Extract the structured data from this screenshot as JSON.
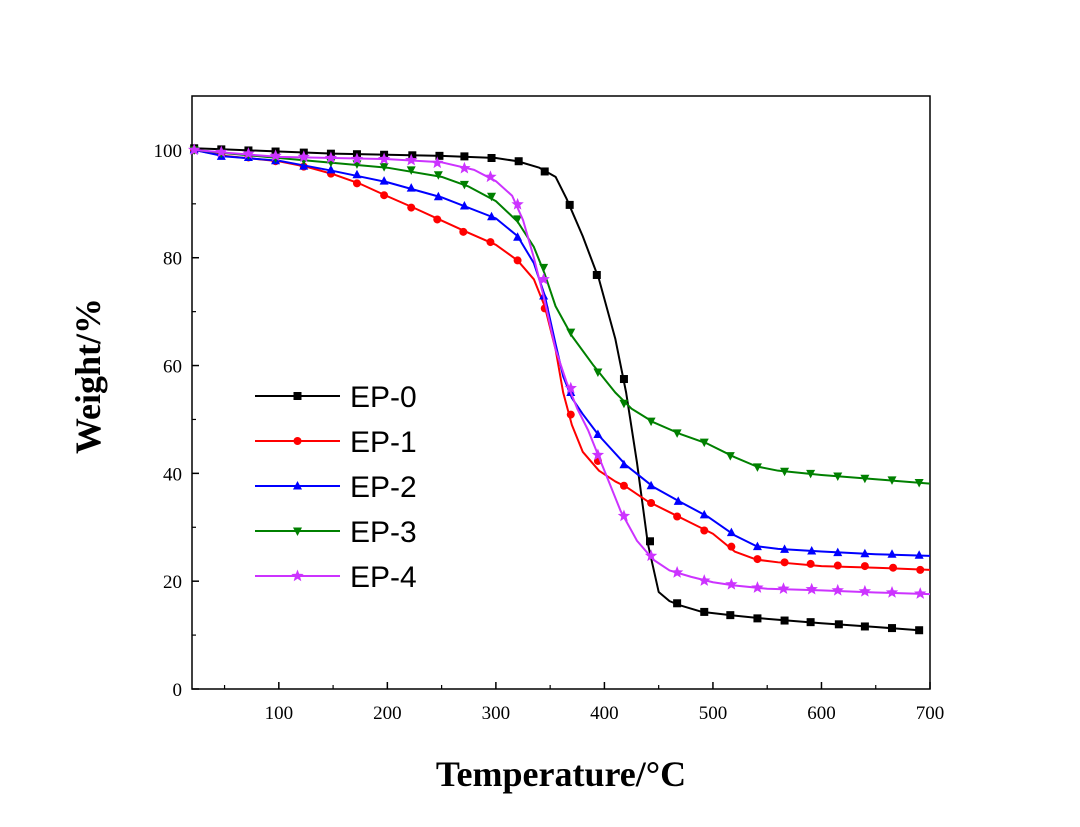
{
  "chart_data": {
    "type": "line",
    "title": "",
    "xlabel": "Temperature/°C",
    "ylabel": "Weight/%",
    "xlim": [
      20,
      700
    ],
    "ylim": [
      0,
      110
    ],
    "xticks": [
      100,
      200,
      300,
      400,
      500,
      600,
      700
    ],
    "yticks": [
      0,
      20,
      40,
      60,
      80,
      100
    ],
    "x_tick_labels": [
      "100",
      "200",
      "300",
      "400",
      "500",
      "600",
      "700"
    ],
    "y_tick_labels": [
      "0",
      "20",
      "40",
      "60",
      "80",
      "100"
    ],
    "grid": false,
    "legend_position": "center-left",
    "series": [
      {
        "name": "EP-0",
        "color": "#000000",
        "marker": "square",
        "points": [
          [
            22,
            100.3
          ],
          [
            50,
            100.1
          ],
          [
            100,
            99.7
          ],
          [
            150,
            99.3
          ],
          [
            200,
            99.1
          ],
          [
            250,
            98.9
          ],
          [
            300,
            98.5
          ],
          [
            320,
            97.9
          ],
          [
            340,
            96.7
          ],
          [
            355,
            95
          ],
          [
            365,
            91
          ],
          [
            380,
            84
          ],
          [
            395,
            76
          ],
          [
            410,
            65
          ],
          [
            420,
            55
          ],
          [
            430,
            42
          ],
          [
            440,
            27
          ],
          [
            450,
            18
          ],
          [
            460,
            16.3
          ],
          [
            470,
            15.5
          ],
          [
            490,
            14.3
          ],
          [
            520,
            13.6
          ],
          [
            550,
            13
          ],
          [
            600,
            12.2
          ],
          [
            650,
            11.5
          ],
          [
            690,
            10.9
          ]
        ],
        "markers": [
          [
            22,
            100.3
          ],
          [
            47,
            100.1
          ],
          [
            72,
            99.9
          ],
          [
            97,
            99.7
          ],
          [
            123,
            99.5
          ],
          [
            148,
            99.3
          ],
          [
            172,
            99.2
          ],
          [
            197,
            99.1
          ],
          [
            223,
            99
          ],
          [
            248,
            98.9
          ],
          [
            271,
            98.8
          ],
          [
            296,
            98.5
          ],
          [
            321,
            97.9
          ],
          [
            345,
            96
          ],
          [
            368,
            89.8
          ],
          [
            393,
            76.8
          ],
          [
            418,
            57.5
          ],
          [
            442,
            27.4
          ],
          [
            467,
            15.9
          ],
          [
            492,
            14.3
          ],
          [
            516,
            13.7
          ],
          [
            541,
            13.1
          ],
          [
            566,
            12.7
          ],
          [
            590,
            12.4
          ],
          [
            616,
            12
          ],
          [
            640,
            11.6
          ],
          [
            665,
            11.3
          ],
          [
            690,
            10.9
          ]
        ]
      },
      {
        "name": "EP-1",
        "color": "#ff0000",
        "marker": "circle",
        "points": [
          [
            22,
            100
          ],
          [
            50,
            98.9
          ],
          [
            100,
            97.9
          ],
          [
            125,
            96.9
          ],
          [
            150,
            95.5
          ],
          [
            175,
            93.7
          ],
          [
            200,
            91.4
          ],
          [
            225,
            89.2
          ],
          [
            250,
            86.9
          ],
          [
            275,
            84.6
          ],
          [
            300,
            82.4
          ],
          [
            320,
            79.5
          ],
          [
            335,
            76
          ],
          [
            345,
            71
          ],
          [
            355,
            63
          ],
          [
            362,
            55
          ],
          [
            370,
            49
          ],
          [
            380,
            44
          ],
          [
            395,
            40.5
          ],
          [
            410,
            38.5
          ],
          [
            420,
            37.5
          ],
          [
            440,
            34.8
          ],
          [
            460,
            32.8
          ],
          [
            480,
            30.8
          ],
          [
            500,
            28.8
          ],
          [
            520,
            25.5
          ],
          [
            540,
            24
          ],
          [
            560,
            23.5
          ],
          [
            600,
            22.8
          ],
          [
            650,
            22.5
          ],
          [
            700,
            22.1
          ]
        ],
        "markers": [
          [
            22,
            100
          ],
          [
            47,
            99.2
          ],
          [
            72,
            98.6
          ],
          [
            97,
            97.9
          ],
          [
            123,
            96.9
          ],
          [
            148,
            95.6
          ],
          [
            172,
            93.8
          ],
          [
            197,
            91.6
          ],
          [
            222,
            89.3
          ],
          [
            246,
            87.1
          ],
          [
            270,
            84.8
          ],
          [
            295,
            82.9
          ],
          [
            320,
            79.5
          ],
          [
            345,
            70.6
          ],
          [
            369,
            50.9
          ],
          [
            394,
            42.3
          ],
          [
            418,
            37.7
          ],
          [
            443,
            34.5
          ],
          [
            467,
            32
          ],
          [
            492,
            29.4
          ],
          [
            517,
            26.4
          ],
          [
            541,
            24.1
          ],
          [
            566,
            23.5
          ],
          [
            590,
            23.2
          ],
          [
            615,
            22.9
          ],
          [
            640,
            22.8
          ],
          [
            666,
            22.5
          ],
          [
            691,
            22.1
          ]
        ]
      },
      {
        "name": "EP-2",
        "color": "#0000ff",
        "marker": "triangle-up",
        "points": [
          [
            22,
            100
          ],
          [
            50,
            98.8
          ],
          [
            100,
            98
          ],
          [
            150,
            96.1
          ],
          [
            200,
            94
          ],
          [
            250,
            91.2
          ],
          [
            300,
            87.3
          ],
          [
            320,
            84
          ],
          [
            335,
            79
          ],
          [
            345,
            73
          ],
          [
            355,
            64
          ],
          [
            362,
            58
          ],
          [
            370,
            54
          ],
          [
            380,
            51
          ],
          [
            395,
            47
          ],
          [
            420,
            41.5
          ],
          [
            445,
            37.5
          ],
          [
            470,
            34.7
          ],
          [
            495,
            32
          ],
          [
            520,
            28.5
          ],
          [
            540,
            26.5
          ],
          [
            560,
            26
          ],
          [
            600,
            25.5
          ],
          [
            650,
            25
          ],
          [
            700,
            24.7
          ]
        ],
        "markers": [
          [
            22,
            100
          ],
          [
            47,
            98.8
          ],
          [
            72,
            98.6
          ],
          [
            97,
            98
          ],
          [
            123,
            97
          ],
          [
            148,
            96.3
          ],
          [
            172,
            95.4
          ],
          [
            197,
            94.2
          ],
          [
            222,
            92.9
          ],
          [
            247,
            91.3
          ],
          [
            271,
            89.6
          ],
          [
            296,
            87.6
          ],
          [
            320,
            83.8
          ],
          [
            344,
            72.9
          ],
          [
            369,
            55
          ],
          [
            394,
            47.2
          ],
          [
            418,
            41.6
          ],
          [
            443,
            37.7
          ],
          [
            468,
            34.8
          ],
          [
            492,
            32.3
          ],
          [
            517,
            29
          ],
          [
            541,
            26.4
          ],
          [
            566,
            25.9
          ],
          [
            591,
            25.6
          ],
          [
            615,
            25.3
          ],
          [
            640,
            25.1
          ],
          [
            665,
            25
          ],
          [
            690,
            24.8
          ]
        ]
      },
      {
        "name": "EP-3",
        "color": "#008000",
        "marker": "triangle-down",
        "points": [
          [
            22,
            100
          ],
          [
            50,
            99.4
          ],
          [
            100,
            98.5
          ],
          [
            150,
            97.6
          ],
          [
            200,
            96.7
          ],
          [
            250,
            95
          ],
          [
            275,
            93.2
          ],
          [
            300,
            90.5
          ],
          [
            320,
            86.7
          ],
          [
            335,
            82
          ],
          [
            345,
            77
          ],
          [
            355,
            71
          ],
          [
            370,
            65.5
          ],
          [
            390,
            60
          ],
          [
            410,
            55
          ],
          [
            425,
            52
          ],
          [
            445,
            49.5
          ],
          [
            470,
            47.3
          ],
          [
            495,
            45.5
          ],
          [
            520,
            43
          ],
          [
            540,
            41.3
          ],
          [
            560,
            40.5
          ],
          [
            600,
            39.7
          ],
          [
            650,
            38.9
          ],
          [
            700,
            38.1
          ]
        ],
        "markers": [
          [
            22,
            100
          ],
          [
            47,
            99.4
          ],
          [
            72,
            99.1
          ],
          [
            97,
            98.5
          ],
          [
            123,
            98.1
          ],
          [
            148,
            97.7
          ],
          [
            172,
            97.4
          ],
          [
            197,
            96.9
          ],
          [
            222,
            96.3
          ],
          [
            247,
            95.4
          ],
          [
            271,
            93.6
          ],
          [
            296,
            91.4
          ],
          [
            320,
            87.2
          ],
          [
            344,
            78.2
          ],
          [
            369,
            66.2
          ],
          [
            394,
            58.8
          ],
          [
            418,
            53
          ],
          [
            443,
            49.7
          ],
          [
            467,
            47.5
          ],
          [
            492,
            45.8
          ],
          [
            516,
            43.3
          ],
          [
            541,
            41.2
          ],
          [
            566,
            40.4
          ],
          [
            590,
            40
          ],
          [
            615,
            39.5
          ],
          [
            640,
            39.1
          ],
          [
            665,
            38.8
          ],
          [
            690,
            38.3
          ]
        ]
      },
      {
        "name": "EP-4",
        "color": "#cc33ff",
        "marker": "star",
        "points": [
          [
            22,
            100
          ],
          [
            50,
            99.5
          ],
          [
            100,
            98.7
          ],
          [
            150,
            98.5
          ],
          [
            200,
            98.3
          ],
          [
            250,
            97.7
          ],
          [
            280,
            96.3
          ],
          [
            300,
            94.2
          ],
          [
            315,
            91.5
          ],
          [
            325,
            87
          ],
          [
            335,
            80
          ],
          [
            345,
            72
          ],
          [
            355,
            63
          ],
          [
            365,
            57
          ],
          [
            375,
            52
          ],
          [
            385,
            48
          ],
          [
            395,
            43
          ],
          [
            405,
            38
          ],
          [
            415,
            33
          ],
          [
            430,
            27.5
          ],
          [
            445,
            24
          ],
          [
            460,
            22
          ],
          [
            480,
            20.8
          ],
          [
            500,
            19.8
          ],
          [
            520,
            19.2
          ],
          [
            550,
            18.6
          ],
          [
            600,
            18.3
          ],
          [
            650,
            17.9
          ],
          [
            700,
            17.6
          ]
        ],
        "markers": [
          [
            22,
            100
          ],
          [
            47,
            99.6
          ],
          [
            72,
            99.3
          ],
          [
            97,
            98.9
          ],
          [
            123,
            98.7
          ],
          [
            148,
            98.5
          ],
          [
            172,
            98.3
          ],
          [
            197,
            98.3
          ],
          [
            222,
            98.1
          ],
          [
            246,
            97.6
          ],
          [
            271,
            96.6
          ],
          [
            295,
            95
          ],
          [
            320,
            89.9
          ],
          [
            344,
            76
          ],
          [
            369,
            55.8
          ],
          [
            394,
            43.4
          ],
          [
            418,
            32.1
          ],
          [
            443,
            24.7
          ],
          [
            467,
            21.6
          ],
          [
            492,
            20.1
          ],
          [
            517,
            19.4
          ],
          [
            541,
            18.8
          ],
          [
            565,
            18.6
          ],
          [
            591,
            18.5
          ],
          [
            615,
            18.3
          ],
          [
            640,
            18.1
          ],
          [
            665,
            17.9
          ],
          [
            691,
            17.7
          ]
        ]
      }
    ]
  }
}
